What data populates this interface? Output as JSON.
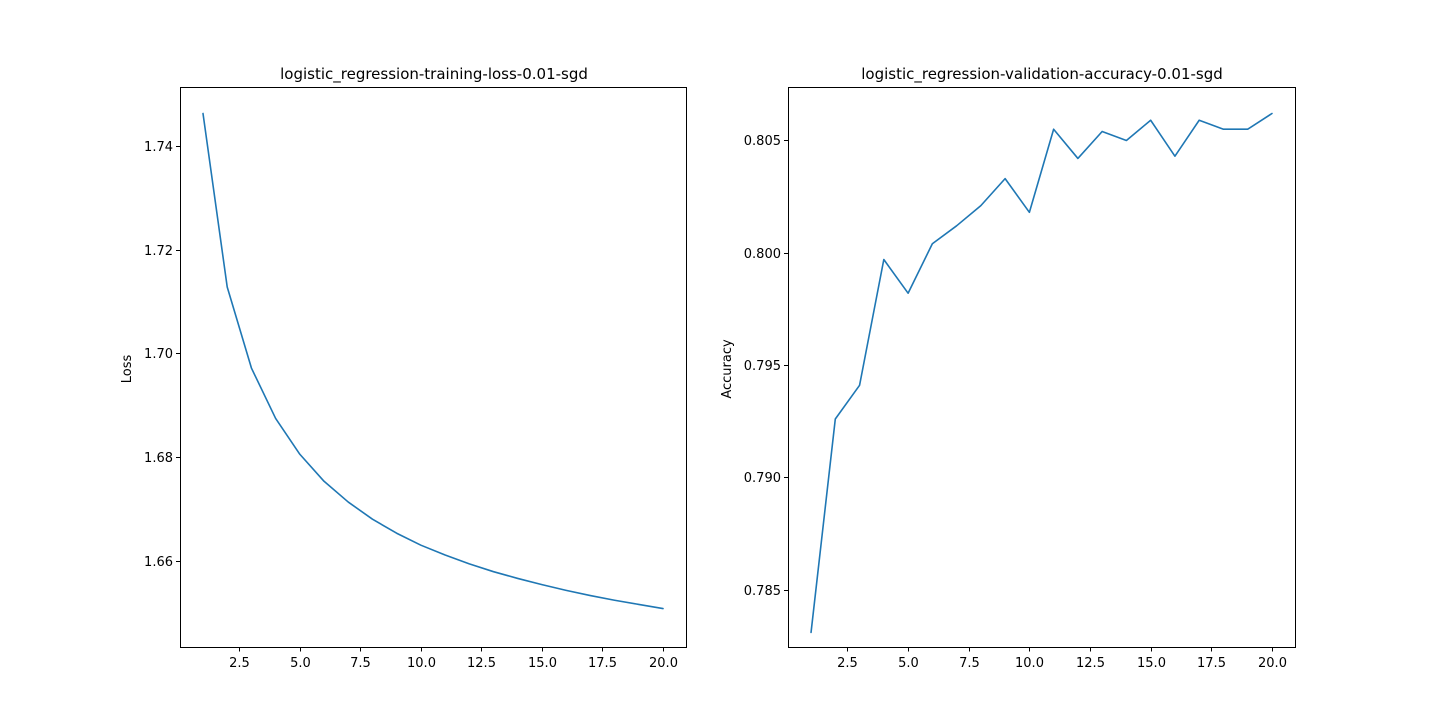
{
  "chart_data": [
    {
      "type": "line",
      "title": "logistic_regression-training-loss-0.01-sgd",
      "xlabel": "",
      "ylabel": "Loss",
      "xlim": [
        0.05,
        20.95
      ],
      "ylim": [
        1.6435,
        1.7513
      ],
      "xticks": [
        2.5,
        5.0,
        7.5,
        10.0,
        12.5,
        15.0,
        17.5,
        20.0
      ],
      "xtick_labels": [
        "2.5",
        "5.0",
        "7.5",
        "10.0",
        "12.5",
        "15.0",
        "17.5",
        "20.0"
      ],
      "yticks": [
        1.66,
        1.68,
        1.7,
        1.72,
        1.74
      ],
      "ytick_labels": [
        "1.66",
        "1.68",
        "1.70",
        "1.72",
        "1.74"
      ],
      "grid": false,
      "color": "#1f77b4",
      "series": [
        {
          "x": [
            1,
            2,
            3,
            4,
            5,
            6,
            7,
            8,
            9,
            10,
            11,
            12,
            13,
            14,
            15,
            16,
            17,
            18,
            19,
            20
          ],
          "values": [
            1.7462,
            1.7128,
            1.6972,
            1.6875,
            1.6806,
            1.6754,
            1.6714,
            1.6681,
            1.6654,
            1.6631,
            1.6612,
            1.6595,
            1.658,
            1.6567,
            1.6555,
            1.6544,
            1.6534,
            1.6525,
            1.6517,
            1.6509
          ]
        }
      ]
    },
    {
      "type": "line",
      "title": "logistic_regression-validation-accuracy-0.01-sgd",
      "xlabel": "",
      "ylabel": "Accuracy",
      "xlim": [
        0.05,
        20.95
      ],
      "ylim": [
        0.78245,
        0.80738
      ],
      "xticks": [
        2.5,
        5.0,
        7.5,
        10.0,
        12.5,
        15.0,
        17.5,
        20.0
      ],
      "xtick_labels": [
        "2.5",
        "5.0",
        "7.5",
        "10.0",
        "12.5",
        "15.0",
        "17.5",
        "20.0"
      ],
      "yticks": [
        0.785,
        0.79,
        0.795,
        0.8,
        0.805
      ],
      "ytick_labels": [
        "0.785",
        "0.790",
        "0.795",
        "0.800",
        "0.805"
      ],
      "grid": false,
      "color": "#1f77b4",
      "series": [
        {
          "x": [
            1,
            2,
            3,
            4,
            5,
            6,
            7,
            8,
            9,
            10,
            11,
            12,
            13,
            14,
            15,
            16,
            17,
            18,
            19,
            20
          ],
          "values": [
            0.7831,
            0.7926,
            0.7941,
            0.7997,
            0.7982,
            0.8004,
            0.8012,
            0.8021,
            0.8033,
            0.8018,
            0.8055,
            0.8042,
            0.8054,
            0.805,
            0.8059,
            0.8043,
            0.8059,
            0.8055,
            0.8055,
            0.8062
          ]
        }
      ]
    }
  ]
}
